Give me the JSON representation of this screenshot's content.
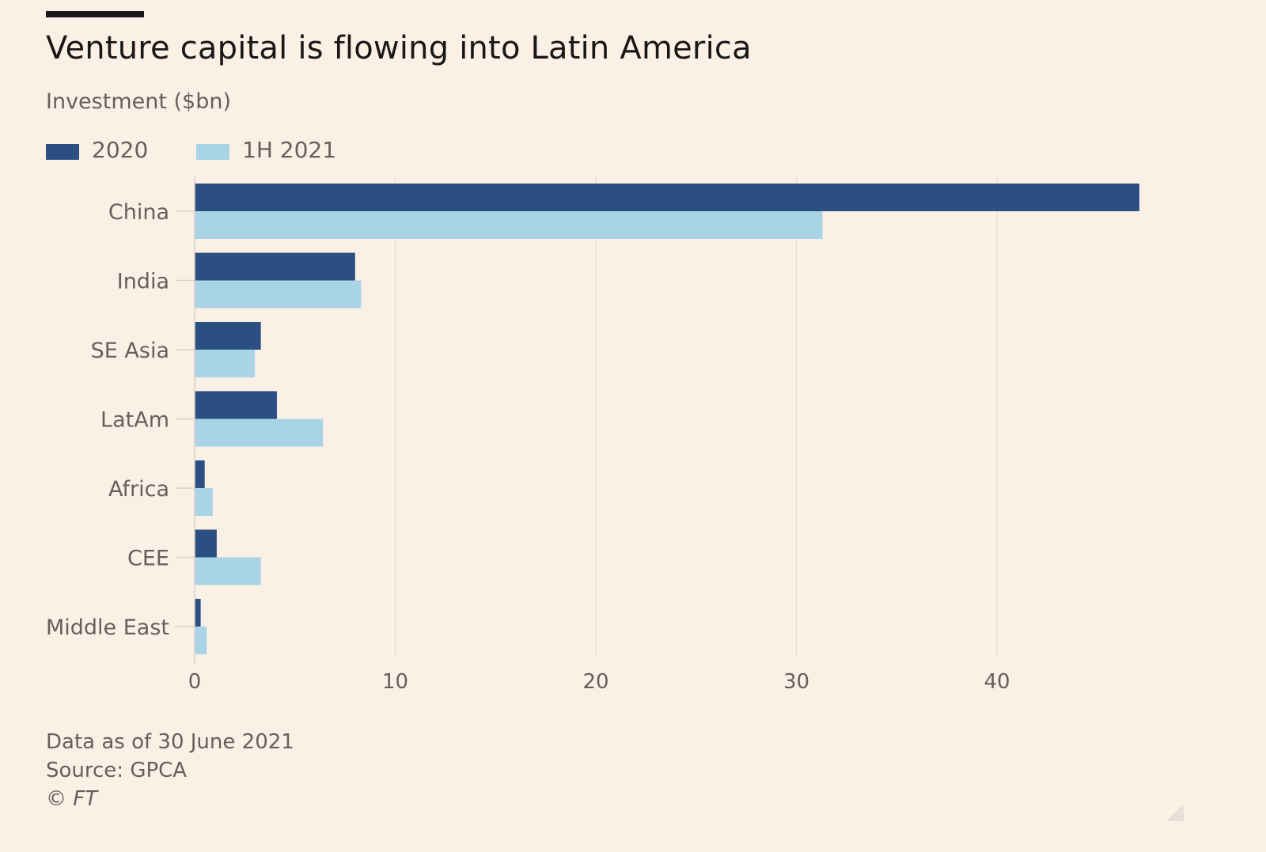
{
  "title": "Venture capital is flowing into Latin America",
  "subtitle": "Investment ($bn)",
  "legend": [
    {
      "label": "2020",
      "color": "#2b4f82"
    },
    {
      "label": "1H 2021",
      "color": "#a8d4e6"
    }
  ],
  "footer": {
    "note": "Data as of 30 June 2021",
    "source": "Source: GPCA",
    "copyright": "© FT"
  },
  "colors": {
    "background": "#fbf0e6",
    "gridline": "#e8e0d8",
    "series_2020": "#2b4f82",
    "series_1h2021": "#a8d4e6"
  },
  "chart_data": {
    "type": "bar",
    "orientation": "horizontal",
    "title": "Venture capital is flowing into Latin America",
    "subtitle": "Investment ($bn)",
    "categories": [
      "China",
      "India",
      "SE Asia",
      "LatAm",
      "Africa",
      "CEE",
      "Middle East"
    ],
    "series": [
      {
        "name": "2020",
        "color": "#2b4f82",
        "values": [
          47.1,
          8.0,
          3.3,
          4.1,
          0.5,
          1.1,
          0.3
        ]
      },
      {
        "name": "1H 2021",
        "color": "#a8d4e6",
        "values": [
          31.3,
          8.3,
          3.0,
          6.4,
          0.9,
          3.3,
          0.6
        ]
      }
    ],
    "xlim": [
      0,
      48
    ],
    "xticks": [
      0,
      10,
      20,
      30,
      40
    ],
    "grid": true,
    "legend_position": "top-left"
  }
}
